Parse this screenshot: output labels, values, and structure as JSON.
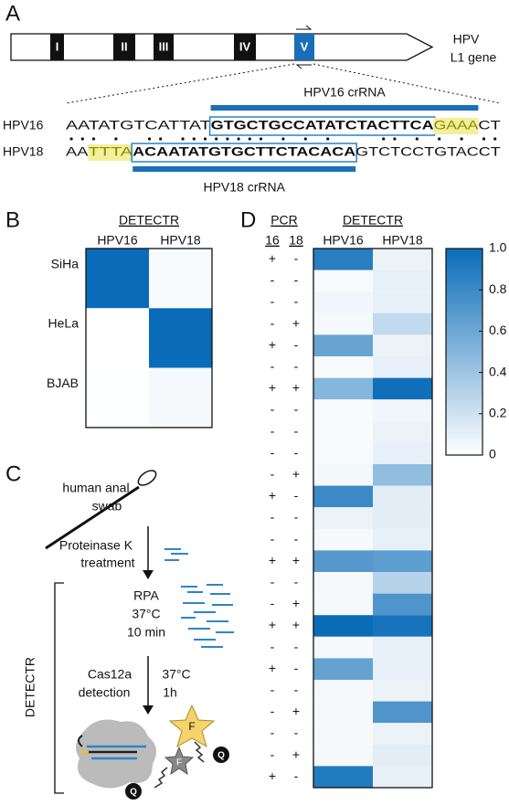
{
  "panel_labels": [
    "A",
    "B",
    "C",
    "D"
  ],
  "gene_diagram": {
    "exons": [
      "I",
      "II",
      "III",
      "IV",
      "V"
    ],
    "gene_label": [
      "HPV",
      "L1 gene"
    ],
    "crrna_labels": [
      "HPV16 crRNA",
      "HPV18 crRNA"
    ],
    "sequences": [
      {
        "name": "HPV16",
        "segments": [
          "AATATGTCATTAT",
          "GTGCTGCCATATCTACTTCA",
          "GAAA",
          "CT"
        ]
      },
      {
        "name": "HPV18",
        "segments": [
          "AA",
          "TTTA",
          "ACAATATGTGCTTCTACACA",
          "GTCTCCTGTACCT"
        ]
      }
    ]
  },
  "workflow": {
    "sample": [
      "human anal",
      "swab"
    ],
    "step1": [
      "Proteinase K",
      "treatment"
    ],
    "step2": [
      "RPA",
      "37°C",
      "10 min"
    ],
    "step3": [
      "Cas12a",
      "detection"
    ],
    "step3_conditions": [
      "37°C",
      "1h"
    ],
    "bracket_label": "DETECTR",
    "reporter_labels": [
      "F",
      "Q"
    ]
  },
  "chart_data": [
    {
      "type": "heatmap",
      "column_header": "DETECTR",
      "columns": [
        "HPV16",
        "HPV18"
      ],
      "rows": [
        "SiHa",
        "HeLa",
        "BJAB"
      ],
      "values": [
        [
          1,
          0.03
        ],
        [
          0,
          1
        ],
        [
          0.01,
          0.04
        ]
      ],
      "clim": [
        0,
        1
      ],
      "colorscale": [
        "#ffffff",
        "#0a6cb8"
      ]
    },
    {
      "type": "heatmap",
      "column_header": "DETECTR",
      "columns": [
        "HPV16",
        "HPV18"
      ],
      "pcr_header": "PCR",
      "pcr_columns": [
        "16",
        "18"
      ],
      "pcr": [
        [
          "+",
          "-"
        ],
        [
          "-",
          "-"
        ],
        [
          "-",
          "-"
        ],
        [
          "-",
          "+"
        ],
        [
          "+",
          "-"
        ],
        [
          "-",
          "-"
        ],
        [
          "+",
          "+"
        ],
        [
          "-",
          "-"
        ],
        [
          "-",
          "-"
        ],
        [
          "-",
          "-"
        ],
        [
          "-",
          "+"
        ],
        [
          "+",
          "-"
        ],
        [
          "-",
          "-"
        ],
        [
          "-",
          "-"
        ],
        [
          "+",
          "+"
        ],
        [
          "-",
          "-"
        ],
        [
          "-",
          "+"
        ],
        [
          "+",
          "+"
        ],
        [
          "-",
          "-"
        ],
        [
          "+",
          "-"
        ],
        [
          "-",
          "-"
        ],
        [
          "-",
          "+"
        ],
        [
          "-",
          "-"
        ],
        [
          "-",
          "+"
        ],
        [
          "+",
          "-"
        ]
      ],
      "values": [
        [
          0.88,
          0.08
        ],
        [
          0.03,
          0.1
        ],
        [
          0.06,
          0.1
        ],
        [
          0.04,
          0.25
        ],
        [
          0.62,
          0.08
        ],
        [
          0.03,
          0.1
        ],
        [
          0.5,
          0.98
        ],
        [
          0.03,
          0.06
        ],
        [
          0.03,
          0.08
        ],
        [
          0.03,
          0.1
        ],
        [
          0.05,
          0.45
        ],
        [
          0.8,
          0.12
        ],
        [
          0.08,
          0.12
        ],
        [
          0.04,
          0.1
        ],
        [
          0.7,
          0.66
        ],
        [
          0.04,
          0.3
        ],
        [
          0.04,
          0.72
        ],
        [
          1,
          0.95
        ],
        [
          0.04,
          0.1
        ],
        [
          0.63,
          0.1
        ],
        [
          0.04,
          0.08
        ],
        [
          0.04,
          0.72
        ],
        [
          0.04,
          0.08
        ],
        [
          0.04,
          0.12
        ],
        [
          0.9,
          0.1
        ]
      ],
      "clim": [
        0,
        1
      ],
      "colorscale": [
        "#ffffff",
        "#0a6cb8"
      ],
      "colorbar_ticks": [
        0,
        0.2,
        0.4,
        0.6,
        0.8,
        {
          "value": 1,
          "label": "1.0"
        }
      ]
    }
  ]
}
